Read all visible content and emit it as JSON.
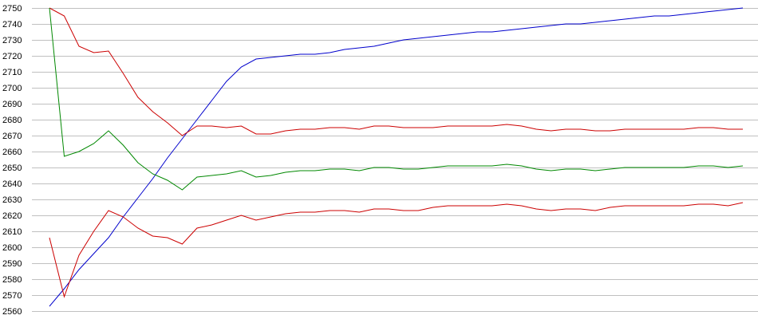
{
  "chart_data": {
    "type": "line",
    "title": "",
    "xlabel": "",
    "ylabel": "",
    "ylim": [
      2560,
      2750
    ],
    "yticks": [
      2560,
      2570,
      2580,
      2590,
      2600,
      2610,
      2620,
      2630,
      2640,
      2650,
      2660,
      2670,
      2680,
      2690,
      2700,
      2710,
      2720,
      2730,
      2740,
      2750
    ],
    "grid": true,
    "legend": "none",
    "series": [
      {
        "color": "#0000cc",
        "values": [
          2563,
          2574,
          2586,
          2596,
          2606,
          2619,
          2631,
          2643,
          2656,
          2668,
          2680,
          2692,
          2704,
          2713,
          2718,
          2719,
          2720,
          2721,
          2721,
          2722,
          2724,
          2725,
          2726,
          2728,
          2730,
          2731,
          2732,
          2733,
          2734,
          2735,
          2735,
          2736,
          2737,
          2738,
          2739,
          2740,
          2740,
          2741,
          2742,
          2743,
          2744,
          2745,
          2745,
          2746,
          2747,
          2748,
          2749,
          2750
        ]
      },
      {
        "color": "#cc0000",
        "values": [
          2750,
          2745,
          2726,
          2722,
          2723,
          2709,
          2694,
          2685,
          2678,
          2670,
          2676,
          2676,
          2675,
          2676,
          2671,
          2671,
          2673,
          2674,
          2674,
          2675,
          2675,
          2674,
          2676,
          2676,
          2675,
          2675,
          2675,
          2676,
          2676,
          2676,
          2676,
          2677,
          2676,
          2674,
          2673,
          2674,
          2674,
          2673,
          2673,
          2674,
          2674,
          2674,
          2674,
          2674,
          2675,
          2675,
          2674,
          2674
        ]
      },
      {
        "color": "#008800",
        "values": [
          2750,
          2657,
          2660,
          2665,
          2673,
          2664,
          2653,
          2646,
          2642,
          2636,
          2644,
          2645,
          2646,
          2648,
          2644,
          2645,
          2647,
          2648,
          2648,
          2649,
          2649,
          2648,
          2650,
          2650,
          2649,
          2649,
          2650,
          2651,
          2651,
          2651,
          2651,
          2652,
          2651,
          2649,
          2648,
          2649,
          2649,
          2648,
          2649,
          2650,
          2650,
          2650,
          2650,
          2650,
          2651,
          2651,
          2650,
          2651
        ]
      },
      {
        "color": "#cc0000",
        "values": [
          2606,
          2569,
          2595,
          2610,
          2623,
          2619,
          2612,
          2607,
          2606,
          2602,
          2612,
          2614,
          2617,
          2620,
          2617,
          2619,
          2621,
          2622,
          2622,
          2623,
          2623,
          2622,
          2624,
          2624,
          2623,
          2623,
          2625,
          2626,
          2626,
          2626,
          2626,
          2627,
          2626,
          2624,
          2623,
          2624,
          2624,
          2623,
          2625,
          2626,
          2626,
          2626,
          2626,
          2626,
          2627,
          2627,
          2626,
          2628
        ]
      }
    ]
  }
}
